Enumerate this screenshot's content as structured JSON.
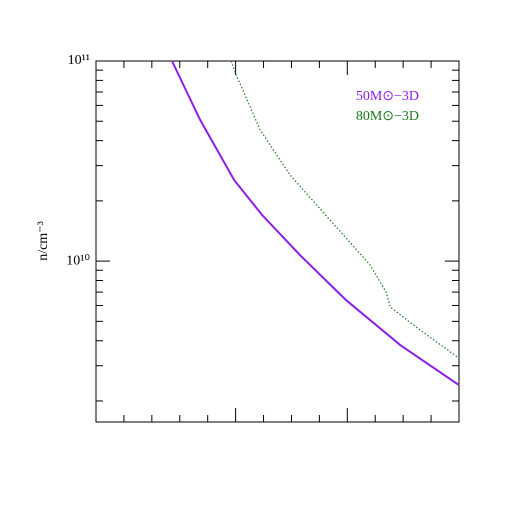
{
  "chart_data": {
    "type": "line",
    "y_label": "n/cm⁻³",
    "ylog": true,
    "ylim": [
      1570000000,
      100000000000
    ],
    "yticks": [
      {
        "value": 10000000000,
        "label": "10¹⁰"
      },
      {
        "value": 100000000000,
        "label": "10¹¹"
      }
    ],
    "yticks_minor": [
      2000000000,
      3000000000,
      4000000000,
      5000000000,
      6000000000,
      7000000000,
      8000000000,
      9000000000,
      20000000000,
      30000000000,
      40000000000,
      50000000000,
      60000000000,
      70000000000,
      80000000000,
      90000000000
    ],
    "xlim": [
      0,
      13
    ],
    "xticks": [
      5,
      9
    ],
    "xticks_minor": [
      1,
      2,
      3,
      4,
      6,
      7,
      8,
      10,
      11,
      12
    ],
    "legend": "upper right",
    "series": [
      {
        "name": "50M⊙−3D",
        "color": "#8a1ee6",
        "style": "solid",
        "x": [
          2.72,
          3.73,
          4.95,
          5.95,
          7.31,
          8.96,
          10.9,
          13
        ],
        "values": [
          100000000000,
          50700000000,
          25400000000,
          17000000000,
          10700000000,
          6380000000,
          3800000000,
          2400000000
        ]
      },
      {
        "name": "80M⊙−3D",
        "color": "#1a7a1a",
        "style": "dotted",
        "x": [
          4.84,
          5.02,
          5.88,
          6.95,
          8.39,
          9.82,
          10.39,
          10.54,
          11.61,
          13
        ],
        "values": [
          100000000000,
          85100000000,
          45200000000,
          26900000000,
          16000000000,
          9550000000,
          7000000000,
          5890000000,
          4520000000,
          3270000000
        ]
      }
    ]
  }
}
